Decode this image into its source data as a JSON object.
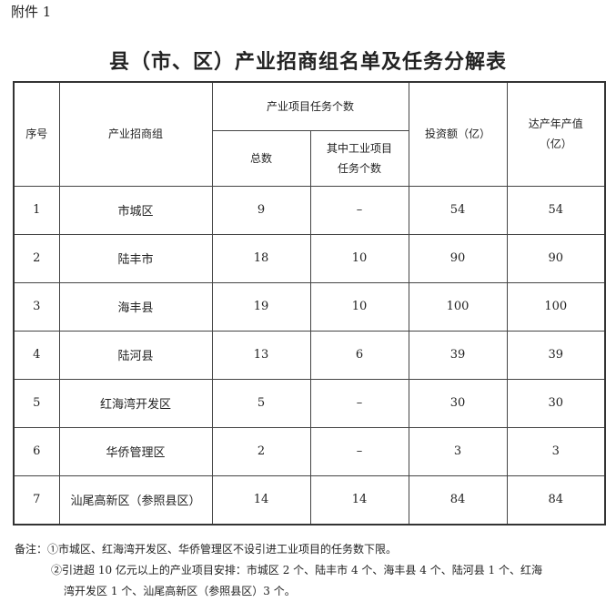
{
  "attachment": "附件 1",
  "title": "县（市、区）产业招商组名单及任务分解表",
  "headers": {
    "seq": "序号",
    "group": "产业招商组",
    "tasks": "产业项目任务个数",
    "total": "总数",
    "industrial": "其中工业项目任务个数",
    "investment": "投资额（亿）",
    "output": "达产年产值（亿）"
  },
  "rows": [
    {
      "seq": "1",
      "group": "市城区",
      "total": "9",
      "industrial": "–",
      "investment": "54",
      "output": "54"
    },
    {
      "seq": "2",
      "group": "陆丰市",
      "total": "18",
      "industrial": "10",
      "investment": "90",
      "output": "90"
    },
    {
      "seq": "3",
      "group": "海丰县",
      "total": "19",
      "industrial": "10",
      "investment": "100",
      "output": "100"
    },
    {
      "seq": "4",
      "group": "陆河县",
      "total": "13",
      "industrial": "6",
      "investment": "39",
      "output": "39"
    },
    {
      "seq": "5",
      "group": "红海湾开发区",
      "total": "5",
      "industrial": "–",
      "investment": "30",
      "output": "30"
    },
    {
      "seq": "6",
      "group": "华侨管理区",
      "total": "2",
      "industrial": "–",
      "investment": "3",
      "output": "3"
    },
    {
      "seq": "7",
      "group": "汕尾高新区（参照县区）",
      "total": "14",
      "industrial": "14",
      "investment": "84",
      "output": "84"
    }
  ],
  "notes": {
    "line1": "备注：①市城区、红海湾开发区、华侨管理区不设引进工业项目的任务数下限。",
    "line2": "②引进超 10 亿元以上的产业项目安排：市城区 2 个、陆丰市 4 个、海丰县 4 个、陆河县 1 个、红海",
    "line3": "湾开发区 1 个、汕尾高新区（参照县区）3 个。"
  }
}
